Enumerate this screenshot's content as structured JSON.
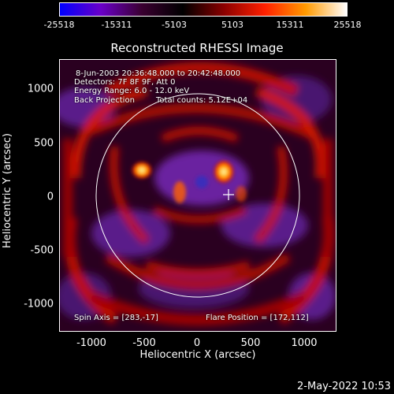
{
  "colorbar": {
    "ticks": [
      "-25518",
      "-15311",
      "-5103",
      "5103",
      "15311",
      "25518"
    ],
    "range": [
      -25518,
      25518
    ],
    "colors": [
      "#0000ff",
      "#6a00c8",
      "#3a0030",
      "#000000",
      "#8a0000",
      "#ff2000",
      "#ff9a00",
      "#ffffff"
    ]
  },
  "title": "Reconstructed RHESSI Image",
  "info": {
    "line1": "8-Jun-2003 20:36:48.000 to 20:42:48.000",
    "line2": "Detectors: 7F 8F 9F, Att 0",
    "line3": "Energy Range: 6.0 - 12.0 keV",
    "line4a": "Back Projection",
    "line4b": "Total counts: 5.12E+04",
    "spin_axis": "Spin Axis = [283,-17]",
    "flare_position": "Flare Position = [172,112]"
  },
  "axes": {
    "xlabel": "Heliocentric X (arcsec)",
    "ylabel": "Heliocentric Y (arcsec)",
    "xticks": [
      "-1000",
      "-500",
      "0",
      "500",
      "1000"
    ],
    "yticks": [
      "1000",
      "500",
      "0",
      "-500",
      "-1000"
    ]
  },
  "timestamp": "2-May-2022 10:53"
}
